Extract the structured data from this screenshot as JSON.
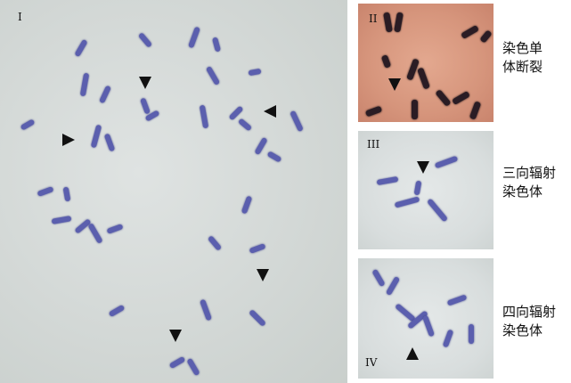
{
  "panels": {
    "panel1": {
      "numeral": "I"
    },
    "panel2": {
      "numeral": "II"
    },
    "panel3": {
      "numeral": "III"
    },
    "panel4": {
      "numeral": "IV"
    }
  },
  "labels": {
    "panel2": [
      "染色单",
      "体断裂"
    ],
    "panel3": [
      "三向辐射",
      "染色体"
    ],
    "panel4": [
      "四向辐射",
      "染色体"
    ]
  }
}
